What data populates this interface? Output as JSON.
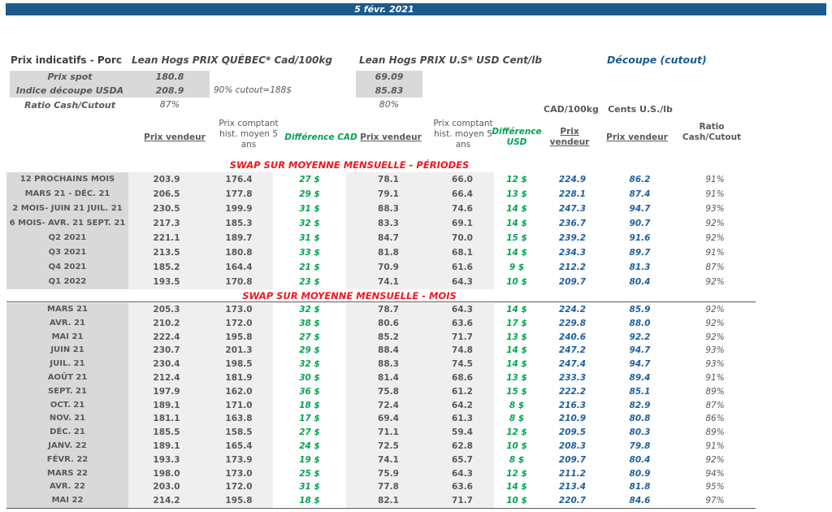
{
  "title_bar": {
    "date": "5 févr. 2021"
  },
  "colors": {
    "bar_blue": "#1D5A8C",
    "accent_blue": "#1C5F9E",
    "green": "#00A550",
    "red": "#EE1822",
    "gray_label_bg": "#D9D9D9",
    "gray_light_bg": "#EFEFEF",
    "text_gray": "#595959"
  },
  "header": {
    "page_title": "Prix indicatifs - Porc",
    "quebec_title": "Lean Hogs PRIX QUÉBEC* Cad/100kg",
    "us_title": "Lean Hogs PRIX U.S* USD Cent/lb",
    "cutout_title": "Découpe (cutout)",
    "spot": {
      "label": "Prix spot",
      "quebec": "180.8",
      "us": "69.09"
    },
    "indice": {
      "label": "Indice découpe USDA",
      "quebec": "208.9",
      "us": "85.83"
    },
    "cutout_note": "90% cutout=188$",
    "ratio": {
      "label": "Ratio Cash/Cutout",
      "quebec": "87%",
      "us": "80%"
    },
    "unit_cad": "CAD/100kg",
    "unit_us": "Cents U.S./lb"
  },
  "columns": {
    "prix_vendeur_cad": "Prix vendeur",
    "prix_comptant_cad": "Prix comptant hist. moyen 5 ans",
    "difference_cad": "Différence CAD",
    "prix_vendeur_usd": "Prix vendeur",
    "prix_comptant_usd": "Prix comptant hist. moyen 5 ans",
    "difference_usd": "Différence USD",
    "prix_vendeur_cad100kg": "Prix vendeur",
    "prix_vendeur_cents": "Prix vendeur",
    "ratio_cash_cutout": "Ratio Cash/Cutout"
  },
  "sections": [
    {
      "title": "SWAP SUR MOYENNE MENSUELLE - PÉRIODES",
      "rows": [
        [
          "12 PROCHAINS MOIS",
          "203.9",
          "176.4",
          "27 $",
          "78.1",
          "66.0",
          "12 $",
          "224.9",
          "86.2",
          "91%"
        ],
        [
          "MARS 21 -  DÉC. 21",
          "206.5",
          "177.8",
          "29 $",
          "79.1",
          "66.4",
          "13 $",
          "228.1",
          "87.4",
          "91%"
        ],
        [
          "2 MOIS- JUIN 21 JUIL. 21",
          "230.5",
          "199.9",
          "31 $",
          "88.3",
          "74.6",
          "14 $",
          "247.3",
          "94.7",
          "93%"
        ],
        [
          "6 MOIS- AVR. 21 SEPT. 21",
          "217.3",
          "185.3",
          "32 $",
          "83.3",
          "69.1",
          "14 $",
          "236.7",
          "90.7",
          "92%"
        ],
        [
          "Q2 2021",
          "221.1",
          "189.7",
          "31 $",
          "84.7",
          "70.0",
          "15 $",
          "239.2",
          "91.6",
          "92%"
        ],
        [
          "Q3 2021",
          "213.5",
          "180.8",
          "33 $",
          "81.8",
          "68.1",
          "14 $",
          "234.3",
          "89.7",
          "91%"
        ],
        [
          "Q4 2021",
          "185.2",
          "164.4",
          "21 $",
          "70.9",
          "61.6",
          "9 $",
          "212.2",
          "81.3",
          "87%"
        ],
        [
          "Q1 2022",
          "193.5",
          "170.8",
          "23 $",
          "74.1",
          "64.3",
          "10 $",
          "209.7",
          "80.4",
          "92%"
        ]
      ]
    },
    {
      "title": "SWAP SUR MOYENNE MENSUELLE - MOIS",
      "rows": [
        [
          "MARS 21",
          "205.3",
          "173.0",
          "32 $",
          "78.7",
          "64.3",
          "14 $",
          "224.2",
          "85.9",
          "92%"
        ],
        [
          "AVR. 21",
          "210.2",
          "172.0",
          "38 $",
          "80.6",
          "63.6",
          "17 $",
          "229.8",
          "88.0",
          "92%"
        ],
        [
          "MAI 21",
          "222.4",
          "195.8",
          "27 $",
          "85.2",
          "71.7",
          "13 $",
          "240.6",
          "92.2",
          "92%"
        ],
        [
          "JUIN 21",
          "230.7",
          "201.3",
          "29 $",
          "88.4",
          "74.8",
          "14 $",
          "247.2",
          "94.7",
          "93%"
        ],
        [
          "JUIL. 21",
          "230.4",
          "198.5",
          "32 $",
          "88.3",
          "74.5",
          "14 $",
          "247.4",
          "94.7",
          "93%"
        ],
        [
          "AOÛT 21",
          "212.4",
          "181.9",
          "30 $",
          "81.4",
          "68.6",
          "13 $",
          "233.3",
          "89.4",
          "91%"
        ],
        [
          "SEPT. 21",
          "197.9",
          "162.0",
          "36 $",
          "75.8",
          "61.2",
          "15 $",
          "222.2",
          "85.1",
          "89%"
        ],
        [
          "OCT. 21",
          "189.1",
          "171.0",
          "18 $",
          "72.4",
          "64.2",
          "8 $",
          "216.3",
          "82.9",
          "87%"
        ],
        [
          "NOV. 21",
          "181.1",
          "163.8",
          "17 $",
          "69.4",
          "61.3",
          "8 $",
          "210.9",
          "80.8",
          "86%"
        ],
        [
          "DÉC. 21",
          "185.5",
          "158.5",
          "27 $",
          "71.1",
          "59.4",
          "12 $",
          "209.5",
          "80.3",
          "89%"
        ],
        [
          "JANV. 22",
          "189.1",
          "165.4",
          "24 $",
          "72.5",
          "62.8",
          "10 $",
          "208.3",
          "79.8",
          "91%"
        ],
        [
          "FÉVR. 22",
          "193.3",
          "173.9",
          "19 $",
          "74.1",
          "65.7",
          "8 $",
          "209.7",
          "80.4",
          "92%"
        ],
        [
          "MARS 22",
          "198.0",
          "173.0",
          "25 $",
          "75.9",
          "64.3",
          "12 $",
          "211.2",
          "80.9",
          "94%"
        ],
        [
          "AVR. 22",
          "203.0",
          "172.0",
          "31 $",
          "77.8",
          "63.6",
          "14 $",
          "213.4",
          "81.8",
          "95%"
        ],
        [
          "MAI 22",
          "214.2",
          "195.8",
          "18 $",
          "82.1",
          "71.7",
          "10 $",
          "220.7",
          "84.6",
          "97%"
        ]
      ]
    }
  ]
}
